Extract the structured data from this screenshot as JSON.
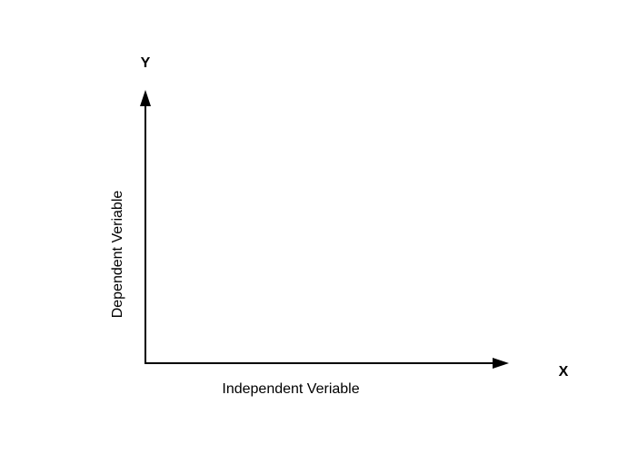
{
  "diagram": {
    "y_axis": {
      "letter": "Y",
      "caption": "Dependent Veriable"
    },
    "x_axis": {
      "letter": "X",
      "caption": "Independent Veriable"
    },
    "colors": {
      "axis": "#000000",
      "text": "#000000",
      "background": "#ffffff"
    }
  }
}
